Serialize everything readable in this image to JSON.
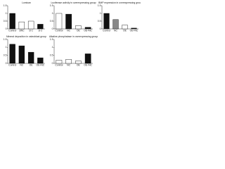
{
  "chart_data": [
    {
      "type": "bar",
      "title": "Lumican",
      "categories": [
        "Control",
        "siNC",
        "si-1",
        "si-2"
      ],
      "values": [
        1,
        0.45,
        0.5,
        0.3
      ],
      "colors": [
        "#111111",
        "#ffffff",
        "#ffffff",
        "#111111"
      ],
      "ylim": [
        0,
        1.5
      ],
      "yticks": [
        0,
        0.5,
        1,
        1.5
      ]
    },
    {
      "type": "bar",
      "title": "Luciferase activity in overexpressing group",
      "categories": [
        "Control",
        "NC",
        "OE",
        "OE+NC"
      ],
      "values": [
        1,
        0.95,
        0.2,
        0.1
      ],
      "colors": [
        "#ffffff",
        "#111111",
        "#ffffff",
        "#111111"
      ],
      "ylim": [
        0,
        1.5
      ],
      "yticks": [
        0,
        0.5,
        1,
        1.5
      ]
    },
    {
      "type": "bar",
      "title": "BMP expression in overexpressing group",
      "categories": [
        "Control",
        "NC",
        "OE",
        "OE+NC"
      ],
      "values": [
        1,
        0.6,
        0.25,
        0.05
      ],
      "colors": [
        "#111111",
        "#888888",
        "#ffffff",
        "#111111"
      ],
      "ylim": [
        0,
        1.5
      ],
      "yticks": [
        0,
        0.5,
        1,
        1.5
      ]
    },
    {
      "type": "bar",
      "title": "Mineral deposition in osteoblast group",
      "categories": [
        "Control",
        "NC",
        "OE",
        "OE+NC"
      ],
      "values": [
        1.2,
        1.1,
        0.7,
        0.35
      ],
      "colors": [
        "#111111",
        "#111111",
        "#111111",
        "#111111"
      ],
      "ylim": [
        0,
        1.5
      ],
      "yticks": [
        0,
        0.5,
        1,
        1.5
      ]
    },
    {
      "type": "bar",
      "title": "Alkaline phosphatase in overexpressing group",
      "categories": [
        "Control",
        "NC",
        "OE",
        "OE+NC"
      ],
      "values": [
        0.2,
        0.25,
        0.15,
        0.6
      ],
      "colors": [
        "#ffffff",
        "#ffffff",
        "#ffffff",
        "#111111"
      ],
      "ylim": [
        0,
        1.5
      ],
      "yticks": [
        0,
        0.5,
        1,
        1.5
      ]
    }
  ]
}
